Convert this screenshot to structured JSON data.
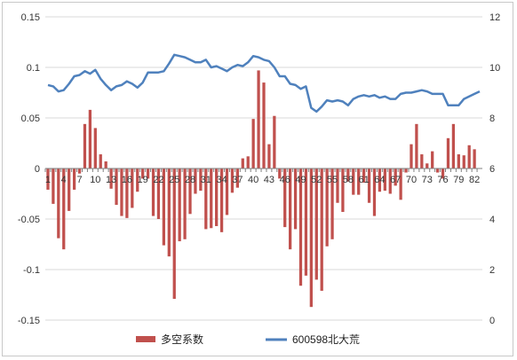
{
  "chart_data": {
    "type": "bar+line",
    "title": "",
    "x": [
      1,
      2,
      3,
      4,
      5,
      6,
      7,
      8,
      9,
      10,
      11,
      12,
      13,
      14,
      15,
      16,
      17,
      18,
      19,
      20,
      21,
      22,
      23,
      24,
      25,
      26,
      27,
      28,
      29,
      30,
      31,
      32,
      33,
      34,
      35,
      36,
      37,
      38,
      39,
      40,
      41,
      42,
      43,
      44,
      45,
      46,
      47,
      48,
      49,
      50,
      51,
      52,
      53,
      54,
      55,
      56,
      57,
      58,
      59,
      60,
      61,
      62,
      63,
      64,
      65,
      66,
      67,
      68,
      69,
      70,
      71,
      72,
      73,
      74,
      75,
      76,
      77,
      78,
      79,
      80,
      81,
      82,
      83
    ],
    "x_tick_labels": [
      "1",
      "4",
      "7",
      "10",
      "13",
      "16",
      "19",
      "22",
      "25",
      "28",
      "31",
      "34",
      "37",
      "40",
      "43",
      "46",
      "49",
      "52",
      "55",
      "58",
      "61",
      "64",
      "67",
      "70",
      "73",
      "76",
      "79",
      "82"
    ],
    "y_left": {
      "lim": [
        -0.15,
        0.15
      ],
      "ticks": [
        "0.15",
        "0.1",
        "0.05",
        "0",
        "-0.05",
        "-0.1",
        "-0.15"
      ]
    },
    "y_right": {
      "lim": [
        0,
        12
      ],
      "ticks": [
        "12",
        "10",
        "8",
        "6",
        "4",
        "2",
        "0"
      ]
    },
    "series": [
      {
        "name": "多空系数",
        "kind": "bar",
        "axis": "left",
        "color": "#c0504d",
        "values": [
          -0.021,
          -0.035,
          -0.069,
          -0.08,
          -0.042,
          -0.021,
          -0.005,
          0.044,
          0.058,
          0.04,
          0.014,
          0.007,
          -0.02,
          -0.036,
          -0.047,
          -0.049,
          -0.039,
          -0.023,
          -0.01,
          -0.01,
          -0.047,
          -0.05,
          -0.076,
          -0.087,
          -0.129,
          -0.072,
          -0.07,
          -0.045,
          -0.025,
          -0.022,
          -0.06,
          -0.059,
          -0.057,
          -0.063,
          -0.046,
          -0.024,
          -0.019,
          0.01,
          0.012,
          0.049,
          0.097,
          0.085,
          0.024,
          0.052,
          -0.01,
          -0.058,
          -0.08,
          -0.06,
          -0.116,
          -0.106,
          -0.137,
          -0.11,
          -0.121,
          -0.077,
          -0.07,
          -0.034,
          -0.043,
          -0.013,
          -0.026,
          -0.026,
          -0.014,
          -0.034,
          -0.047,
          -0.023,
          -0.022,
          -0.025,
          -0.017,
          -0.031,
          -0.004,
          0.024,
          0.044,
          0.014,
          0.005,
          0.017,
          -0.004,
          -0.01,
          0.03,
          0.044,
          0.014,
          0.013,
          0.023,
          0.019,
          0.0
        ]
      },
      {
        "name": "600598北大荒",
        "kind": "line",
        "axis": "right",
        "color": "#4f81bd",
        "values": [
          9.3,
          9.25,
          9.05,
          9.1,
          9.35,
          9.65,
          9.7,
          9.85,
          9.75,
          9.9,
          9.55,
          9.3,
          9.1,
          9.25,
          9.3,
          9.45,
          9.35,
          9.2,
          9.4,
          9.8,
          9.8,
          9.8,
          9.85,
          10.15,
          10.5,
          10.45,
          10.4,
          10.3,
          10.2,
          10.2,
          10.3,
          10.0,
          10.05,
          9.95,
          9.85,
          10.0,
          10.1,
          10.05,
          10.2,
          10.45,
          10.4,
          10.3,
          10.25,
          10.0,
          9.65,
          9.65,
          9.35,
          9.3,
          9.15,
          9.25,
          8.4,
          8.25,
          8.45,
          8.7,
          8.65,
          8.7,
          8.65,
          8.5,
          8.75,
          8.85,
          8.9,
          8.85,
          8.9,
          8.8,
          8.85,
          8.75,
          8.75,
          8.95,
          9.0,
          9.0,
          9.05,
          9.1,
          9.05,
          8.95,
          8.95,
          8.95,
          8.5,
          8.5,
          8.5,
          8.75,
          8.85,
          8.95,
          9.05
        ]
      }
    ],
    "legend": {
      "placement": "bottom"
    },
    "grid": {
      "horizontal": true,
      "vertical": false
    }
  }
}
